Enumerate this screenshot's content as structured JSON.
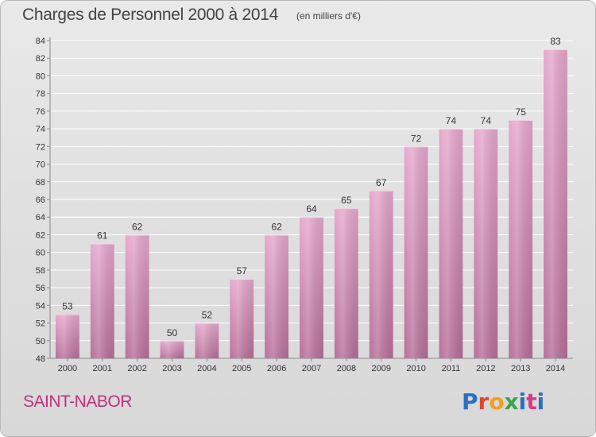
{
  "header": {
    "title": "Charges de Personnel 2000 à 2014",
    "subtitle": "(en milliers d'€)"
  },
  "footer": {
    "commune": "SAINT-NABOR",
    "logo_text": "Proxiti",
    "logo_colors": [
      "#2a6fc4",
      "#e0462b",
      "#f0a020",
      "#3fa34d",
      "#2a6fc4",
      "#d63a8c",
      "#2a6fc4"
    ]
  },
  "chart_data": {
    "type": "bar",
    "categories": [
      "2000",
      "2001",
      "2002",
      "2003",
      "2004",
      "2005",
      "2006",
      "2007",
      "2008",
      "2009",
      "2010",
      "2011",
      "2012",
      "2013",
      "2014"
    ],
    "values": [
      53,
      61,
      62,
      50,
      52,
      57,
      62,
      64,
      65,
      67,
      72,
      74,
      74,
      75,
      83
    ],
    "ylim": [
      48,
      84
    ],
    "yticks": [
      48,
      50,
      52,
      54,
      56,
      58,
      60,
      62,
      64,
      66,
      68,
      70,
      72,
      74,
      76,
      78,
      80,
      82,
      84
    ],
    "grid": true,
    "bar_color_top": "#e6a9cd",
    "bar_color_bottom": "#b8709a"
  }
}
